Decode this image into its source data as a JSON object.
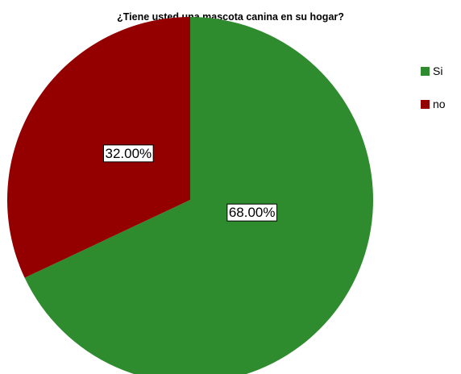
{
  "chart_data": {
    "type": "pie",
    "title": "¿Tiene usted una mascota canina en su hogar?",
    "categories": [
      "Si",
      "no"
    ],
    "values": [
      68.0,
      32.0
    ],
    "data_labels": [
      "68.00%",
      "32.00%"
    ],
    "colors": [
      "#2e8b2e",
      "#940000"
    ],
    "legend_position": "right",
    "start_angle": "top, clockwise"
  }
}
